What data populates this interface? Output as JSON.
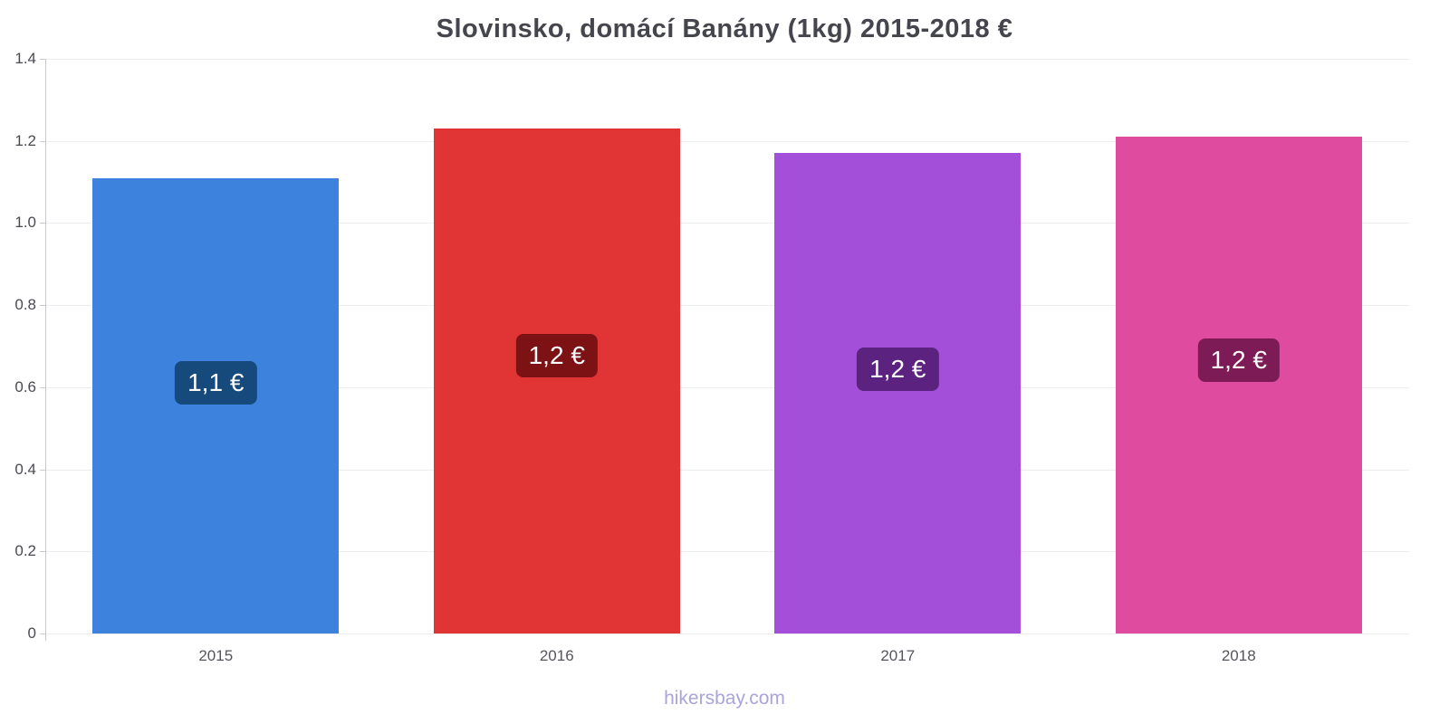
{
  "footer": "hikersbay.com",
  "chart_data": {
    "type": "bar",
    "title": "Slovinsko, domácí Banány (1kg) 2015-2018 €",
    "categories": [
      "2015",
      "2016",
      "2017",
      "2018"
    ],
    "values": [
      1.11,
      1.23,
      1.17,
      1.21
    ],
    "value_labels": [
      "1,1 €",
      "1,2 €",
      "1,2 €",
      "1,2 €"
    ],
    "bar_colors": [
      "#3d82dd",
      "#e03534",
      "#a44fd9",
      "#df4b9f"
    ],
    "label_bg_colors": [
      "#164a7d",
      "#7d1215",
      "#5c2280",
      "#7c1b55"
    ],
    "xlabel": "",
    "ylabel": "",
    "ylim": [
      0,
      1.4
    ],
    "yticks": [
      0,
      0.2,
      0.4,
      0.6,
      0.8,
      1.0,
      1.2,
      1.4
    ],
    "grid": true,
    "legend": "none",
    "title_color": "#45454d",
    "watermark_color": "#aaa4db"
  }
}
